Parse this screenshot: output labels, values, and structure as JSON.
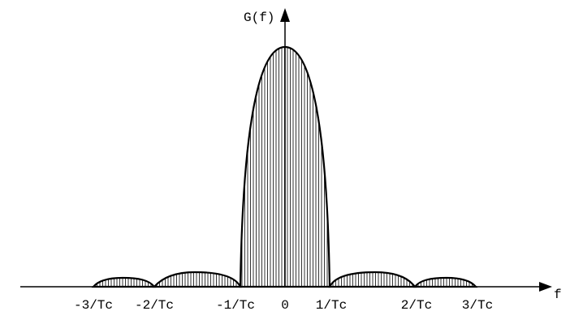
{
  "axis_labels": {
    "y": "G(f)",
    "x": "f"
  },
  "ticks": [
    "-3/Tc",
    "-2/Tc",
    "-1/Tc",
    "0",
    "1/Tc",
    "2/Tc",
    "3/Tc"
  ]
}
